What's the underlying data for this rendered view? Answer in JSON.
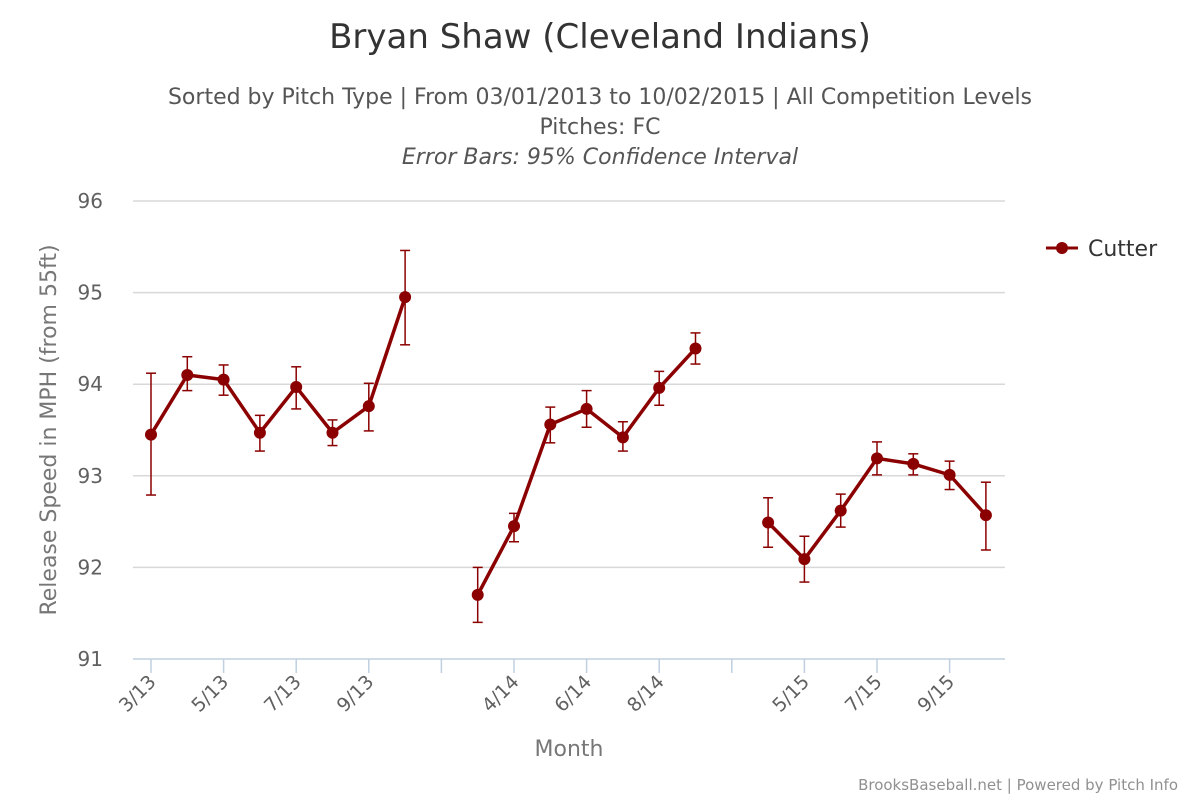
{
  "chart_data": {
    "type": "line",
    "title": "Bryan Shaw (Cleveland Indians)",
    "subtitle_line1": "Sorted by Pitch Type | From 03/01/2013 to 10/02/2015 | All Competition Levels",
    "subtitle_line2": "Pitches: FC",
    "subtitle_line3": "Error Bars: 95% Confidence Interval",
    "xlabel": "Month",
    "ylabel": "Release Speed in MPH (from 55ft)",
    "ylim": [
      91,
      96
    ],
    "yticks": [
      91,
      92,
      93,
      94,
      95,
      96
    ],
    "grid": true,
    "legend_position": "top-right",
    "x_categories": [
      "3/13",
      "4/13",
      "5/13",
      "6/13",
      "7/13",
      "8/13",
      "9/13",
      "10/13",
      "",
      "3/14",
      "4/14",
      "5/14",
      "6/14",
      "7/14",
      "8/14",
      "9/14",
      "",
      "4/15",
      "5/15",
      "6/15",
      "7/15",
      "8/15",
      "9/15",
      "10/15"
    ],
    "x_tick_labels": [
      "3/13",
      "5/13",
      "7/13",
      "9/13",
      "4/14",
      "6/14",
      "8/14",
      "5/15",
      "7/15",
      "9/15"
    ],
    "series": [
      {
        "name": "Cutter",
        "color": "#8b0000",
        "segments": [
          [
            {
              "x": "3/13",
              "y": 93.45,
              "low": 92.79,
              "high": 94.12
            },
            {
              "x": "4/13",
              "y": 94.1,
              "low": 93.93,
              "high": 94.3
            },
            {
              "x": "5/13",
              "y": 94.05,
              "low": 93.88,
              "high": 94.21
            },
            {
              "x": "6/13",
              "y": 93.47,
              "low": 93.27,
              "high": 93.66
            },
            {
              "x": "7/13",
              "y": 93.97,
              "low": 93.73,
              "high": 94.19
            },
            {
              "x": "8/13",
              "y": 93.47,
              "low": 93.33,
              "high": 93.61
            },
            {
              "x": "9/13",
              "y": 93.76,
              "low": 93.49,
              "high": 94.01
            },
            {
              "x": "10/13",
              "y": 94.95,
              "low": 94.43,
              "high": 95.46
            }
          ],
          [
            {
              "x": "3/14",
              "y": 91.7,
              "low": 91.4,
              "high": 92.0
            },
            {
              "x": "4/14",
              "y": 92.45,
              "low": 92.28,
              "high": 92.59
            },
            {
              "x": "5/14",
              "y": 93.56,
              "low": 93.36,
              "high": 93.75
            },
            {
              "x": "6/14",
              "y": 93.73,
              "low": 93.53,
              "high": 93.93
            },
            {
              "x": "7/14",
              "y": 93.42,
              "low": 93.27,
              "high": 93.59
            },
            {
              "x": "8/14",
              "y": 93.96,
              "low": 93.77,
              "high": 94.14
            },
            {
              "x": "9/14",
              "y": 94.39,
              "low": 94.22,
              "high": 94.56
            }
          ],
          [
            {
              "x": "4/15",
              "y": 92.49,
              "low": 92.22,
              "high": 92.76
            },
            {
              "x": "5/15",
              "y": 92.09,
              "low": 91.84,
              "high": 92.34
            },
            {
              "x": "6/15",
              "y": 92.62,
              "low": 92.44,
              "high": 92.8
            },
            {
              "x": "7/15",
              "y": 93.19,
              "low": 93.01,
              "high": 93.37
            },
            {
              "x": "8/15",
              "y": 93.13,
              "low": 93.01,
              "high": 93.24
            },
            {
              "x": "9/15",
              "y": 93.01,
              "low": 92.85,
              "high": 93.16
            },
            {
              "x": "10/15",
              "y": 92.57,
              "low": 92.19,
              "high": 92.93
            }
          ]
        ]
      }
    ]
  },
  "credit": "BrooksBaseball.net | Powered by Pitch Info",
  "colors": {
    "series": "#8b0000",
    "grid": "#d8d8d8",
    "axis": "#c0d0e0"
  }
}
